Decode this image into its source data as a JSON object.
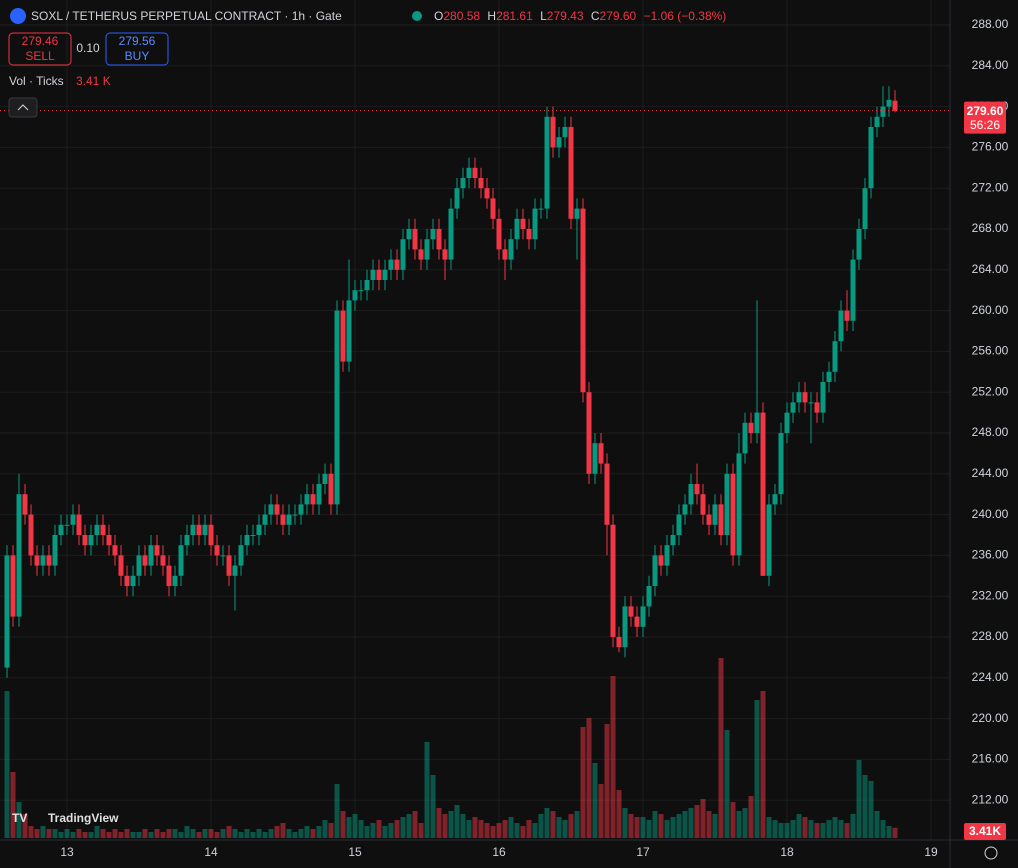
{
  "chart_data": {
    "type": "candlestick",
    "title": "SOXL / TETHERUS PERPETUAL CONTRACT · 1h · Gate",
    "header": {
      "o_label": "O",
      "o": "280.58",
      "h_label": "H",
      "h": "281.61",
      "l_label": "L",
      "l": "279.43",
      "c_label": "C",
      "c": "279.60",
      "change": "−1.06 (−0.38%)"
    },
    "sell": {
      "price": "279.46",
      "label": "SELL"
    },
    "spread": "0.10",
    "buy": {
      "price": "279.56",
      "label": "BUY"
    },
    "volume_title": "Vol · Ticks",
    "volume_value": "3.41 K",
    "volume_tag": "3.41K",
    "last_price_tag": "279.60",
    "countdown": "56:26",
    "watermark": "TradingView",
    "up_color": "#089981",
    "down_color": "#f23645",
    "ylim": [
      288,
      210
    ],
    "yticks": [
      {
        "value": 288,
        "label": "288.00"
      },
      {
        "value": 284,
        "label": "284.00"
      },
      {
        "value": 280,
        "label": "280.00"
      },
      {
        "value": 276,
        "label": "276.00"
      },
      {
        "value": 272,
        "label": "272.00"
      },
      {
        "value": 268,
        "label": "268.00"
      },
      {
        "value": 264,
        "label": "264.00"
      },
      {
        "value": 260,
        "label": "260.00"
      },
      {
        "value": 256,
        "label": "256.00"
      },
      {
        "value": 252,
        "label": "252.00"
      },
      {
        "value": 248,
        "label": "248.00"
      },
      {
        "value": 244,
        "label": "244.00"
      },
      {
        "value": 240,
        "label": "240.00"
      },
      {
        "value": 236,
        "label": "236.00"
      },
      {
        "value": 232,
        "label": "232.00"
      },
      {
        "value": 228,
        "label": "228.00"
      },
      {
        "value": 224,
        "label": "224.00"
      },
      {
        "value": 220,
        "label": "220.00"
      },
      {
        "value": 216,
        "label": "216.00"
      },
      {
        "value": 212,
        "label": "212.00"
      }
    ],
    "xticks": [
      {
        "value": 10,
        "label": "13"
      },
      {
        "value": 34,
        "label": "14"
      },
      {
        "value": 58,
        "label": "15"
      },
      {
        "value": 82,
        "label": "16"
      },
      {
        "value": 106,
        "label": "17"
      },
      {
        "value": 130,
        "label": "18"
      },
      {
        "value": 154,
        "label": "19"
      }
    ],
    "vlim": [
      0,
      80
    ],
    "open": [
      225,
      236,
      230,
      242,
      240,
      236,
      235,
      236,
      235,
      238,
      239,
      239,
      240,
      238,
      237,
      238,
      239,
      238,
      237,
      236,
      234,
      233,
      234,
      236,
      235,
      237,
      236,
      235,
      233,
      234,
      237,
      238,
      239,
      238,
      239,
      237,
      236,
      236,
      234,
      235,
      237,
      238,
      238,
      239,
      240,
      241,
      240,
      239,
      240,
      240,
      241,
      242,
      241,
      243,
      244,
      241,
      260,
      255,
      261,
      262,
      262,
      263,
      264,
      263,
      264,
      265,
      264,
      267,
      268,
      266,
      265,
      267,
      268,
      266,
      265,
      270,
      272,
      273,
      274,
      273,
      272,
      271,
      269,
      266,
      265,
      267,
      269,
      268,
      267,
      270,
      270,
      279,
      276,
      277,
      278,
      269,
      270,
      252,
      244,
      247,
      245,
      239,
      228,
      227,
      231,
      230,
      229,
      231,
      233,
      236,
      235,
      237,
      238,
      240,
      241,
      243,
      242,
      240,
      239,
      241,
      238,
      244,
      236,
      246,
      249,
      248,
      250,
      234,
      241,
      242,
      248,
      250,
      251,
      252,
      251,
      251,
      250,
      253,
      254,
      257,
      260,
      259,
      265,
      268,
      272,
      278,
      279,
      280,
      280.58
    ],
    "high": [
      237,
      237,
      244,
      243,
      241,
      237,
      237,
      237,
      239,
      240,
      240,
      241,
      241,
      239,
      239,
      240,
      240,
      239,
      238,
      237,
      235,
      235,
      237,
      237,
      238,
      238,
      237,
      236,
      235,
      238,
      239,
      240,
      240,
      240,
      240,
      238,
      237,
      237,
      236,
      238,
      239,
      239,
      240,
      241,
      242,
      242,
      241,
      241,
      241,
      242,
      243,
      243,
      244,
      245,
      245,
      261,
      261,
      265,
      263,
      263,
      264,
      265,
      265,
      265,
      266,
      266,
      268,
      269,
      269,
      267,
      268,
      269,
      269,
      267,
      271,
      273,
      274,
      275,
      275,
      274,
      273,
      272,
      270,
      267,
      268,
      270,
      270,
      269,
      271,
      271,
      280,
      280,
      278,
      279,
      279,
      271,
      271,
      253,
      248,
      248,
      246,
      240,
      229,
      232,
      232,
      231,
      232,
      234,
      237,
      237,
      238,
      239,
      241,
      242,
      244,
      245,
      243,
      241,
      242,
      242,
      245,
      245,
      248,
      250,
      250,
      261,
      251,
      242,
      243,
      249,
      251,
      252,
      253,
      253,
      252,
      252,
      254,
      255,
      258,
      261,
      262,
      266,
      269,
      273,
      279,
      280,
      282,
      282,
      281.61
    ],
    "low": [
      224,
      229,
      229,
      239,
      235,
      234,
      234,
      234,
      234,
      237,
      238,
      238,
      237,
      236,
      236,
      237,
      237,
      236,
      235,
      233,
      232,
      232,
      233,
      234,
      234,
      235,
      234,
      232,
      232,
      233,
      236,
      237,
      237,
      237,
      236,
      235,
      235,
      233,
      230.6,
      234,
      236,
      237,
      237,
      238,
      239,
      239,
      238,
      238,
      239,
      239,
      240,
      240,
      240,
      242,
      240,
      240,
      254,
      254,
      260,
      261,
      261,
      262,
      262,
      262,
      263,
      263,
      263,
      266,
      265,
      264,
      264,
      266,
      265,
      263,
      264,
      269,
      271,
      272,
      272,
      271,
      270,
      268,
      265,
      263,
      264,
      266,
      267,
      266,
      266,
      269,
      269,
      275,
      275,
      276,
      268,
      265,
      251,
      243,
      243,
      244,
      236,
      227,
      226.5,
      226,
      229,
      228,
      228,
      230,
      232,
      234,
      234,
      236,
      237,
      239,
      240,
      241,
      239,
      238,
      238,
      237,
      237,
      235,
      235,
      245,
      247,
      247,
      234,
      233,
      240,
      241,
      247,
      249,
      250,
      250,
      247,
      249,
      249,
      252,
      253,
      256,
      258,
      258,
      264,
      267,
      271,
      277,
      278,
      279,
      279.43
    ],
    "close": [
      236,
      230,
      242,
      240,
      236,
      235,
      236,
      235,
      238,
      239,
      239,
      240,
      238,
      237,
      238,
      239,
      238,
      237,
      236,
      234,
      233,
      234,
      236,
      235,
      237,
      236,
      235,
      233,
      234,
      237,
      238,
      239,
      238,
      239,
      237,
      236,
      236,
      234,
      235,
      237,
      238,
      238,
      239,
      240,
      241,
      240,
      239,
      240,
      240,
      241,
      242,
      241,
      243,
      244,
      241,
      260,
      255,
      261,
      262,
      262,
      263,
      264,
      263,
      264,
      265,
      264,
      267,
      268,
      266,
      265,
      267,
      268,
      266,
      265,
      270,
      272,
      273,
      274,
      273,
      272,
      271,
      269,
      266,
      265,
      267,
      269,
      268,
      267,
      270,
      270,
      279,
      276,
      277,
      278,
      269,
      270,
      252,
      244,
      247,
      245,
      239,
      228,
      227,
      231,
      230,
      229,
      231,
      233,
      236,
      235,
      237,
      238,
      240,
      241,
      243,
      242,
      240,
      239,
      241,
      238,
      244,
      236,
      246,
      249,
      248,
      250,
      234,
      241,
      242,
      248,
      250,
      251,
      252,
      251,
      251,
      250,
      253,
      254,
      257,
      260,
      259,
      265,
      268,
      272,
      278,
      279,
      280,
      280.66,
      279.6
    ],
    "volume": [
      49,
      22,
      12,
      8,
      4,
      3,
      4,
      3,
      3,
      2,
      3,
      2,
      3,
      2,
      2,
      4,
      3,
      2,
      3,
      2,
      3,
      2,
      2,
      3,
      2,
      3,
      2,
      3,
      3,
      2,
      4,
      3,
      2,
      3,
      3,
      2,
      3,
      4,
      3,
      2,
      3,
      2,
      3,
      2,
      3,
      4,
      5,
      3,
      2,
      3,
      4,
      3,
      4,
      6,
      5,
      18,
      9,
      7,
      8,
      6,
      4,
      5,
      6,
      4,
      5,
      6,
      7,
      8,
      9,
      5,
      32,
      21,
      10,
      8,
      9,
      11,
      8,
      6,
      7,
      6,
      5,
      4,
      5,
      6,
      7,
      5,
      4,
      6,
      5,
      8,
      10,
      9,
      7,
      6,
      8,
      9,
      37,
      40,
      25,
      18,
      38,
      54,
      16,
      10,
      8,
      7,
      7,
      6,
      9,
      8,
      6,
      7,
      8,
      9,
      10,
      11,
      13,
      9,
      8,
      60,
      36,
      12,
      9,
      10,
      14,
      46,
      49,
      7,
      6,
      5,
      5,
      6,
      8,
      7,
      6,
      5,
      5,
      6,
      7,
      6,
      5,
      8,
      26,
      21,
      19,
      9,
      6,
      4,
      3.41
    ]
  }
}
